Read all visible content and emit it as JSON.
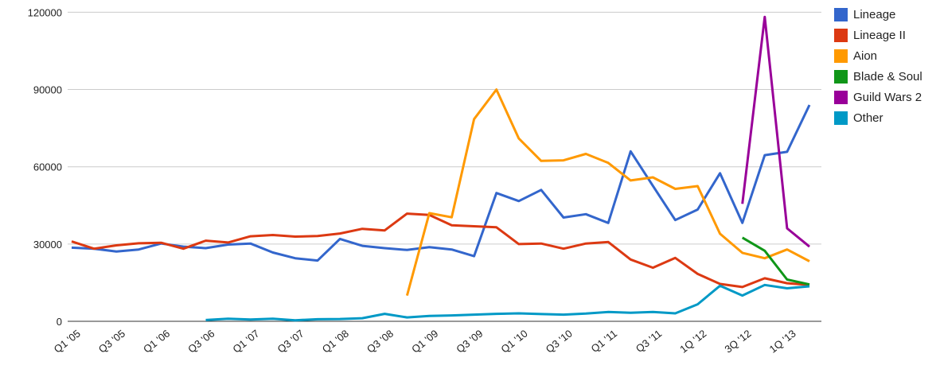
{
  "chart_data": {
    "type": "line",
    "title": "",
    "xlabel": "",
    "ylabel": "",
    "ylim": [
      0,
      120000
    ],
    "yticks": [
      0,
      30000,
      60000,
      90000,
      120000
    ],
    "grid": true,
    "legend_position": "right",
    "x_tick_labels_shown": [
      "Q1 '05",
      "Q3 '05",
      "Q1 '06",
      "Q3 '06",
      "Q1 '07",
      "Q3 '07",
      "Q1 '08",
      "Q3 '08",
      "Q1 '09",
      "Q3 '09",
      "Q1 '10",
      "Q3 '10",
      "Q1 '11",
      "Q3 '11",
      "1Q '12",
      "3Q '12",
      "1Q '13"
    ],
    "categories": [
      "Q1 '05",
      "Q2 '05",
      "Q3 '05",
      "Q4 '05",
      "Q1 '06",
      "Q2 '06",
      "Q3 '06",
      "Q4 '06",
      "Q1 '07",
      "Q2 '07",
      "Q3 '07",
      "Q4 '07",
      "Q1 '08",
      "Q2 '08",
      "Q3 '08",
      "Q4 '08",
      "Q1 '09",
      "Q2 '09",
      "Q3 '09",
      "Q4 '09",
      "Q1 '10",
      "Q2 '10",
      "Q3 '10",
      "Q4 '10",
      "Q1 '11",
      "Q2 '11",
      "Q3 '11",
      "Q4 '11",
      "1Q '12",
      "2Q '12",
      "3Q '12",
      "4Q '12",
      "1Q '13",
      "2Q '13"
    ],
    "series": [
      {
        "name": "Lineage",
        "color": "#3366CC",
        "values": [
          28600,
          28200,
          27100,
          27900,
          30200,
          29000,
          28400,
          29800,
          30200,
          26700,
          24500,
          23600,
          32000,
          29300,
          28400,
          27700,
          28800,
          27900,
          25300,
          49800,
          46700,
          51000,
          40300,
          41600,
          38200,
          66000,
          52600,
          39300,
          43400,
          57500,
          38200,
          64500,
          65800,
          84000
        ]
      },
      {
        "name": "Lineage II",
        "color": "#DC3912",
        "values": [
          31000,
          28200,
          29500,
          30300,
          30500,
          28200,
          31300,
          30600,
          33000,
          33500,
          32900,
          33100,
          34100,
          35900,
          35300,
          41800,
          41300,
          37300,
          36900,
          36500,
          30000,
          30200,
          28200,
          30200,
          30800,
          24000,
          20800,
          24600,
          18400,
          14500,
          13300,
          16700,
          14800,
          14100
        ]
      },
      {
        "name": "Aion",
        "color": "#FF9900",
        "values": [
          null,
          null,
          null,
          null,
          null,
          null,
          null,
          null,
          null,
          null,
          null,
          null,
          null,
          null,
          null,
          10000,
          42000,
          40400,
          78500,
          90000,
          71000,
          62300,
          62500,
          65000,
          61500,
          54700,
          55900,
          51400,
          52500,
          34000,
          26600,
          24500,
          27900,
          23300
        ]
      },
      {
        "name": "Blade & Soul",
        "color": "#109618",
        "values": [
          null,
          null,
          null,
          null,
          null,
          null,
          null,
          null,
          null,
          null,
          null,
          null,
          null,
          null,
          null,
          null,
          null,
          null,
          null,
          null,
          null,
          null,
          null,
          null,
          null,
          null,
          null,
          null,
          null,
          null,
          32500,
          27400,
          16200,
          14300
        ]
      },
      {
        "name": "Guild Wars 2",
        "color": "#990099",
        "values": [
          null,
          null,
          null,
          null,
          null,
          null,
          null,
          null,
          null,
          null,
          null,
          null,
          null,
          null,
          null,
          null,
          null,
          null,
          null,
          null,
          null,
          null,
          null,
          null,
          null,
          null,
          null,
          null,
          null,
          null,
          45600,
          118200,
          36100,
          29000
        ]
      },
      {
        "name": "Other",
        "color": "#0099C6",
        "values": [
          null,
          null,
          null,
          null,
          null,
          null,
          500,
          1000,
          700,
          1000,
          400,
          800,
          900,
          1200,
          2900,
          1500,
          2100,
          2300,
          2600,
          2900,
          3100,
          2800,
          2600,
          3000,
          3600,
          3300,
          3600,
          3100,
          6600,
          13800,
          10000,
          14100,
          12800,
          13600
        ]
      }
    ],
    "plot": {
      "axis_color": "#333333",
      "gridline_color": "#cccccc",
      "background": "#ffffff"
    }
  }
}
